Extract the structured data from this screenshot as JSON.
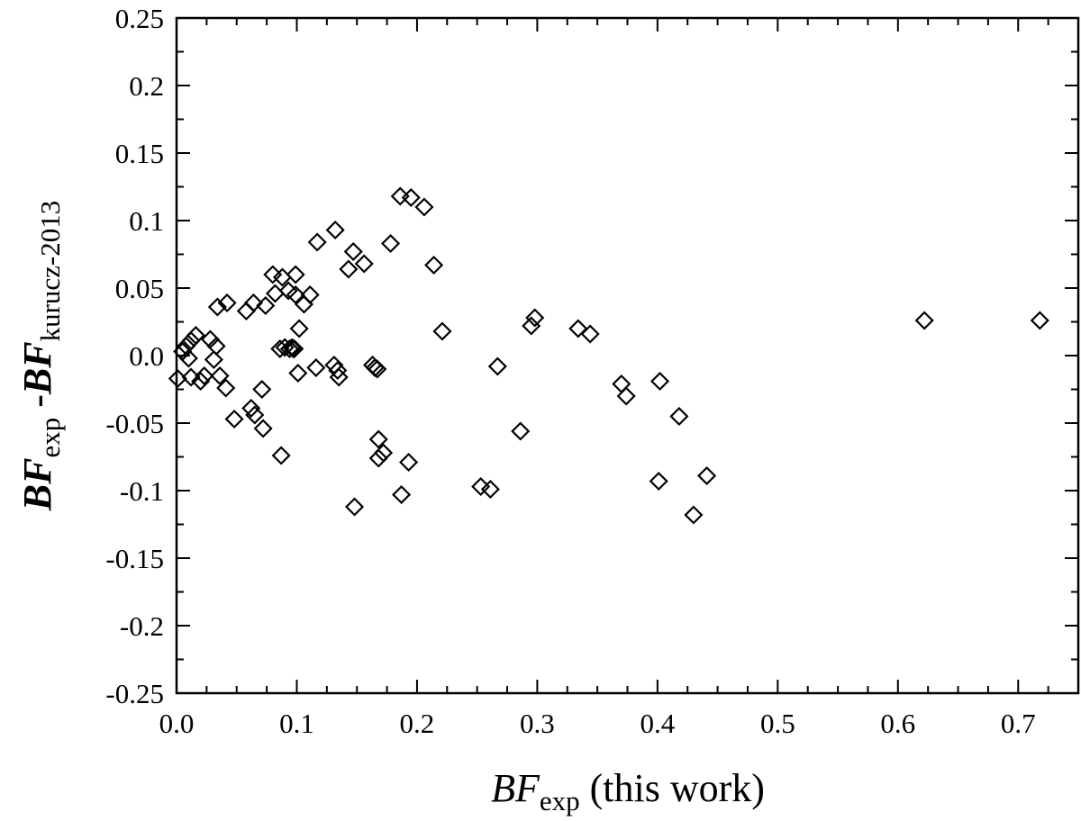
{
  "chart_data": {
    "type": "scatter",
    "xlabel": {
      "main": "BF",
      "sub": "exp",
      "suffix": " (this work)"
    },
    "ylabel": {
      "main1": "BF",
      "sub1": "exp",
      "mid": " -",
      "main2": "BF",
      "sub2": "kurucz-2013"
    },
    "xlim": [
      0.0,
      0.75
    ],
    "ylim": [
      -0.25,
      0.25
    ],
    "xticks": [
      0.0,
      0.1,
      0.2,
      0.3,
      0.4,
      0.5,
      0.6,
      0.7
    ],
    "xtick_labels": [
      "0.0",
      "0.1",
      "0.2",
      "0.3",
      "0.4",
      "0.5",
      "0.6",
      "0.7"
    ],
    "yticks": [
      -0.25,
      -0.2,
      -0.15,
      -0.1,
      -0.05,
      0.0,
      0.05,
      0.1,
      0.15,
      0.2,
      0.25
    ],
    "ytick_labels": [
      "-0.25",
      "-0.2",
      "-0.15",
      "-0.1",
      "-0.05",
      "0.0",
      "0.05",
      "0.1",
      "0.15",
      "0.2",
      "0.25"
    ],
    "marker": "open-diamond",
    "grid": false,
    "points": [
      [
        0.001,
        -0.017
      ],
      [
        0.005,
        0.003
      ],
      [
        0.008,
        0.007
      ],
      [
        0.01,
        -0.002
      ],
      [
        0.012,
        0.011
      ],
      [
        0.012,
        -0.016
      ],
      [
        0.016,
        0.015
      ],
      [
        0.02,
        -0.019
      ],
      [
        0.023,
        -0.015
      ],
      [
        0.028,
        0.012
      ],
      [
        0.031,
        -0.003
      ],
      [
        0.033,
        0.007
      ],
      [
        0.034,
        0.036
      ],
      [
        0.036,
        -0.015
      ],
      [
        0.041,
        -0.024
      ],
      [
        0.042,
        0.039
      ],
      [
        0.048,
        -0.047
      ],
      [
        0.058,
        0.033
      ],
      [
        0.062,
        -0.039
      ],
      [
        0.064,
        0.039
      ],
      [
        0.065,
        -0.044
      ],
      [
        0.071,
        -0.025
      ],
      [
        0.072,
        -0.054
      ],
      [
        0.074,
        0.037
      ],
      [
        0.08,
        0.06
      ],
      [
        0.082,
        0.046
      ],
      [
        0.086,
        0.005
      ],
      [
        0.087,
        -0.074
      ],
      [
        0.088,
        0.058
      ],
      [
        0.09,
        0.006
      ],
      [
        0.093,
        0.048
      ],
      [
        0.094,
        0.005
      ],
      [
        0.096,
        0.006
      ],
      [
        0.097,
        0.005
      ],
      [
        0.098,
        0.005
      ],
      [
        0.099,
        0.06
      ],
      [
        0.099,
        0.045
      ],
      [
        0.101,
        -0.013
      ],
      [
        0.102,
        0.02
      ],
      [
        0.106,
        0.038
      ],
      [
        0.111,
        0.045
      ],
      [
        0.116,
        -0.009
      ],
      [
        0.117,
        0.084
      ],
      [
        0.131,
        -0.007
      ],
      [
        0.132,
        0.093
      ],
      [
        0.134,
        -0.011
      ],
      [
        0.135,
        -0.016
      ],
      [
        0.143,
        0.064
      ],
      [
        0.147,
        0.077
      ],
      [
        0.148,
        -0.112
      ],
      [
        0.156,
        0.068
      ],
      [
        0.163,
        -0.007
      ],
      [
        0.165,
        -0.009
      ],
      [
        0.167,
        -0.01
      ],
      [
        0.168,
        -0.062
      ],
      [
        0.168,
        -0.076
      ],
      [
        0.172,
        -0.072
      ],
      [
        0.178,
        0.083
      ],
      [
        0.186,
        0.118
      ],
      [
        0.187,
        -0.103
      ],
      [
        0.193,
        -0.079
      ],
      [
        0.195,
        0.117
      ],
      [
        0.206,
        0.11
      ],
      [
        0.214,
        0.067
      ],
      [
        0.221,
        0.018
      ],
      [
        0.253,
        -0.097
      ],
      [
        0.261,
        -0.099
      ],
      [
        0.267,
        -0.008
      ],
      [
        0.286,
        -0.056
      ],
      [
        0.295,
        0.022
      ],
      [
        0.298,
        0.028
      ],
      [
        0.334,
        0.02
      ],
      [
        0.344,
        0.016
      ],
      [
        0.37,
        -0.021
      ],
      [
        0.374,
        -0.03
      ],
      [
        0.401,
        -0.093
      ],
      [
        0.402,
        -0.019
      ],
      [
        0.418,
        -0.045
      ],
      [
        0.43,
        -0.118
      ],
      [
        0.441,
        -0.089
      ],
      [
        0.622,
        0.026
      ],
      [
        0.718,
        0.026
      ]
    ]
  }
}
